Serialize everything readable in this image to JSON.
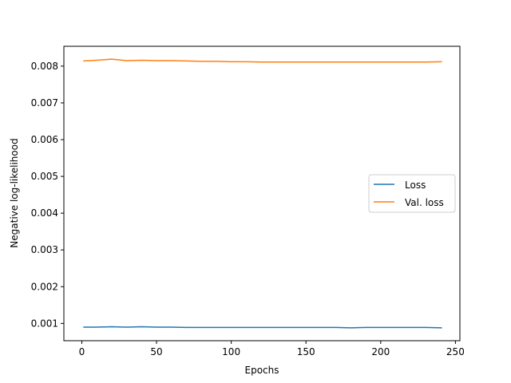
{
  "chart_data": {
    "type": "line",
    "title": "",
    "xlabel": "Epochs",
    "ylabel": "Negative log-likelihood",
    "xlim": [
      -12,
      253
    ],
    "ylim": [
      0.00053,
      0.00854
    ],
    "xticks": [
      0,
      50,
      100,
      150,
      200,
      250
    ],
    "xtick_labels": [
      "0",
      "50",
      "100",
      "150",
      "200",
      "250"
    ],
    "yticks": [
      0.001,
      0.002,
      0.003,
      0.004,
      0.005,
      0.006,
      0.007,
      0.008
    ],
    "ytick_labels": [
      "0.001",
      "0.002",
      "0.003",
      "0.004",
      "0.005",
      "0.006",
      "0.007",
      "0.008"
    ],
    "grid": false,
    "legend_position": "center-right",
    "x": [
      1,
      10,
      20,
      30,
      40,
      50,
      60,
      70,
      80,
      90,
      100,
      110,
      120,
      130,
      140,
      150,
      160,
      170,
      180,
      190,
      200,
      210,
      220,
      230,
      241
    ],
    "series": [
      {
        "name": "Loss",
        "color": "#1f77b4",
        "values": [
          0.0009,
          0.0009,
          0.00091,
          0.0009,
          0.00091,
          0.0009,
          0.0009,
          0.00089,
          0.00089,
          0.00089,
          0.00089,
          0.00089,
          0.00089,
          0.00089,
          0.00089,
          0.00089,
          0.00089,
          0.00089,
          0.00088,
          0.00089,
          0.00089,
          0.00089,
          0.00089,
          0.00089,
          0.00088
        ]
      },
      {
        "name": "Val. loss",
        "color": "#ff7f0e",
        "values": [
          0.00814,
          0.00816,
          0.00819,
          0.00815,
          0.00816,
          0.00815,
          0.00815,
          0.00814,
          0.00813,
          0.00813,
          0.00812,
          0.00812,
          0.00811,
          0.00811,
          0.00811,
          0.00811,
          0.00811,
          0.00811,
          0.00811,
          0.00811,
          0.00811,
          0.00811,
          0.00811,
          0.00811,
          0.00812
        ]
      }
    ]
  }
}
